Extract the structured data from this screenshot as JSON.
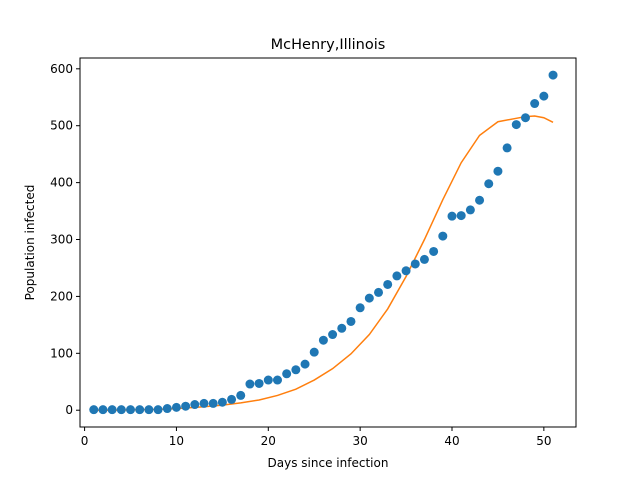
{
  "chart_data": {
    "type": "scatter",
    "title": "McHenry,Illinois",
    "xlabel": "Days since infection",
    "ylabel": "Population infected",
    "xlim": [
      -0.5,
      53.5
    ],
    "ylim": [
      -29.5,
      619
    ],
    "xticks": [
      0,
      10,
      20,
      30,
      40,
      50
    ],
    "yticks": [
      0,
      100,
      200,
      300,
      400,
      500,
      600
    ],
    "grid": false,
    "legend": "none",
    "series": [
      {
        "type": "scatter",
        "color": "#1f77b4",
        "x": [
          1,
          2,
          3,
          4,
          5,
          6,
          7,
          8,
          9,
          10,
          11,
          12,
          13,
          14,
          15,
          16,
          17,
          18,
          19,
          20,
          21,
          22,
          23,
          24,
          25,
          26,
          27,
          28,
          29,
          30,
          31,
          32,
          33,
          34,
          35,
          36,
          37,
          38,
          39,
          40,
          41,
          42,
          43,
          44,
          45,
          46,
          47,
          48,
          49,
          50,
          51
        ],
        "y": [
          1,
          1,
          1,
          1,
          1,
          1,
          1,
          1,
          3,
          5,
          7,
          10,
          12,
          12,
          14,
          19,
          26,
          46,
          47,
          53,
          53,
          64,
          71,
          81,
          102,
          123,
          133,
          144,
          156,
          180,
          197,
          207,
          221,
          236,
          245,
          257,
          265,
          279,
          306,
          341,
          342,
          352,
          369,
          398,
          420,
          461,
          502,
          514,
          539,
          552,
          589
        ]
      },
      {
        "type": "line",
        "color": "#ff7f0e",
        "x": [
          1,
          3,
          5,
          7,
          9,
          11,
          13,
          15,
          17,
          19,
          21,
          23,
          25,
          27,
          29,
          31,
          33,
          35,
          37,
          39,
          41,
          43,
          45,
          47,
          48,
          49,
          50,
          51
        ],
        "y": [
          0,
          0,
          0.5,
          1,
          2,
          4,
          6,
          9,
          13,
          18,
          26,
          37,
          53,
          73,
          99,
          133,
          178,
          235,
          300,
          370,
          435,
          483,
          507,
          513,
          516,
          517,
          514,
          506
        ]
      }
    ]
  }
}
